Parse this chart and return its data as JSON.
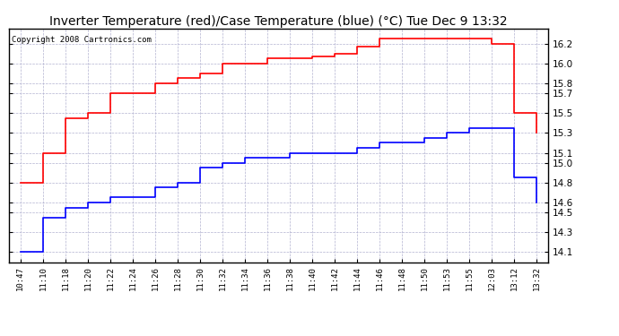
{
  "title": "Inverter Temperature (red)/Case Temperature (blue) (°C) Tue Dec 9 13:32",
  "copyright": "Copyright 2008 Cartronics.com",
  "x_labels": [
    "10:47",
    "11:10",
    "11:18",
    "11:20",
    "11:22",
    "11:24",
    "11:26",
    "11:28",
    "11:30",
    "11:32",
    "11:34",
    "11:36",
    "11:38",
    "11:40",
    "11:42",
    "11:44",
    "11:46",
    "11:48",
    "11:50",
    "11:53",
    "11:55",
    "12:03",
    "13:12",
    "13:32"
  ],
  "red_values": [
    14.8,
    15.1,
    15.45,
    15.5,
    15.7,
    15.7,
    15.8,
    15.85,
    15.9,
    16.0,
    16.0,
    16.05,
    16.05,
    16.07,
    16.1,
    16.17,
    16.25,
    16.25,
    16.25,
    16.25,
    16.25,
    16.2,
    15.5,
    15.3
  ],
  "blue_values": [
    14.1,
    14.45,
    14.55,
    14.6,
    14.65,
    14.65,
    14.75,
    14.8,
    14.95,
    15.0,
    15.05,
    15.05,
    15.1,
    15.1,
    15.1,
    15.15,
    15.2,
    15.2,
    15.25,
    15.3,
    15.35,
    15.35,
    14.85,
    14.6
  ],
  "ylim": [
    14.0,
    16.35
  ],
  "yticks": [
    14.1,
    14.3,
    14.5,
    14.6,
    14.8,
    15.0,
    15.1,
    15.3,
    15.5,
    15.7,
    15.8,
    16.0,
    16.2
  ],
  "background_color": "#ffffff",
  "grid_color": "#aaaacc",
  "title_fontsize": 10,
  "copyright_fontsize": 6.5,
  "tick_fontsize": 7.5,
  "xtick_fontsize": 6.5
}
